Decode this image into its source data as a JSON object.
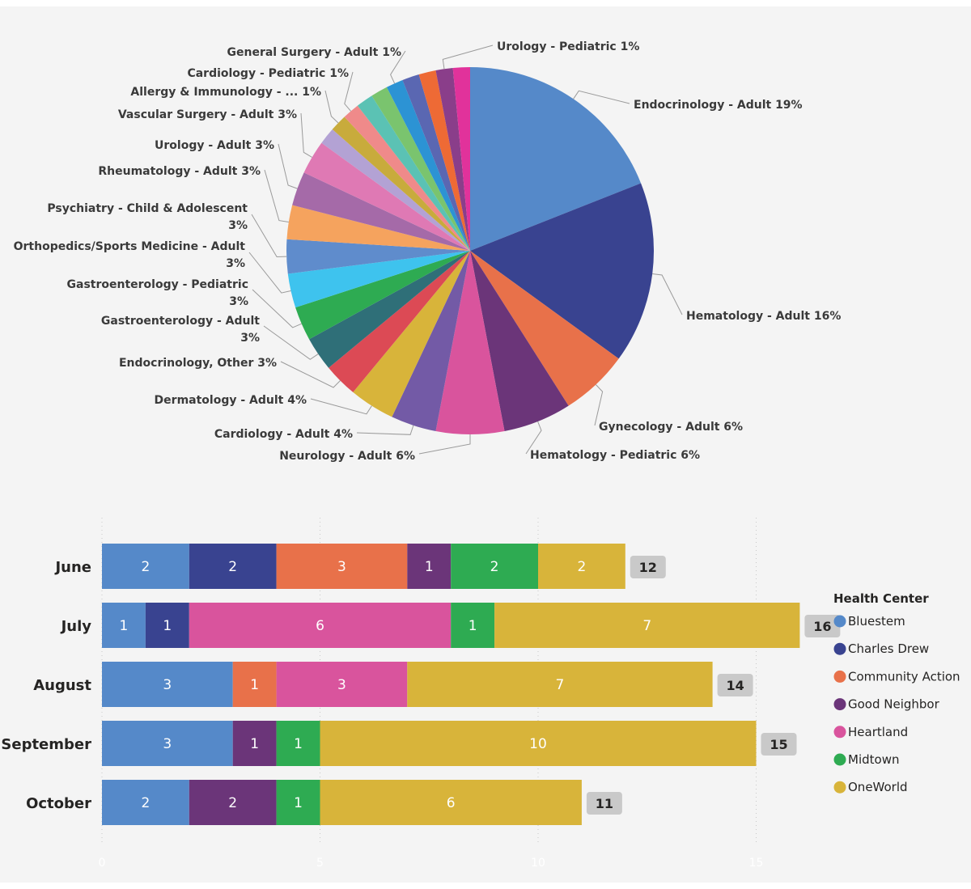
{
  "chart_data": [
    {
      "type": "pie",
      "title": "",
      "slices": [
        {
          "label": "Endocrinology - Adult",
          "pct_label": "19%",
          "value": 19,
          "color": "#5589c9"
        },
        {
          "label": "Hematology - Adult",
          "pct_label": "16%",
          "value": 16,
          "color": "#394390"
        },
        {
          "label": "Gynecology - Adult",
          "pct_label": "6%",
          "value": 6,
          "color": "#e8714a"
        },
        {
          "label": "Hematology - Pediatric",
          "pct_label": "6%",
          "value": 6,
          "color": "#6b3579"
        },
        {
          "label": "Neurology - Adult",
          "pct_label": "6%",
          "value": 6,
          "color": "#d9549d"
        },
        {
          "label": "Cardiology - Adult",
          "pct_label": "4%",
          "value": 4,
          "color": "#735aa6"
        },
        {
          "label": "Dermatology - Adult",
          "pct_label": "4%",
          "value": 4,
          "color": "#d8b43a"
        },
        {
          "label": "Endocrinology, Other",
          "pct_label": "3%",
          "value": 3,
          "color": "#dc4a55"
        },
        {
          "label": "Gastroenterology - Adult",
          "pct_label": "3%",
          "value": 3,
          "color": "#2f6f78"
        },
        {
          "label": "Gastroenterology - Pediatric",
          "pct_label": "3%",
          "value": 3,
          "color": "#2eab52"
        },
        {
          "label": "Orthopedics/Sports Medicine - Adult",
          "pct_label": "3%",
          "value": 3,
          "color": "#3ec3ee"
        },
        {
          "label": "Psychiatry - Child & Adolescent",
          "pct_label": "3%",
          "value": 3,
          "color": "#5f8ccc"
        },
        {
          "label": "Rheumatology - Adult",
          "pct_label": "3%",
          "value": 3,
          "color": "#f5a35e"
        },
        {
          "label": "Urology - Adult",
          "pct_label": "3%",
          "value": 3,
          "color": "#a56aa8"
        },
        {
          "label": "Vascular Surgery - Adult",
          "pct_label": "3%",
          "value": 3,
          "color": "#df79b4"
        },
        {
          "label": "",
          "pct_label": "",
          "value": 1.5,
          "color": "#b3a2d4"
        },
        {
          "label": "Allergy & Immunology - ...",
          "pct_label": "1%",
          "value": 1.5,
          "color": "#c8ab3c"
        },
        {
          "label": "Cardiology - Pediatric",
          "pct_label": "1%",
          "value": 1.5,
          "color": "#ef8a8a"
        },
        {
          "label": "",
          "pct_label": "",
          "value": 1.5,
          "color": "#5bc2b4"
        },
        {
          "label": "",
          "pct_label": "",
          "value": 1.5,
          "color": "#7ac46e"
        },
        {
          "label": "General Surgery - Adult",
          "pct_label": "1%",
          "value": 1.5,
          "color": "#2c93d4"
        },
        {
          "label": "",
          "pct_label": "",
          "value": 1.5,
          "color": "#5a67b2"
        },
        {
          "label": "",
          "pct_label": "",
          "value": 1.5,
          "color": "#ee6a35"
        },
        {
          "label": "Urology - Pediatric",
          "pct_label": "1%",
          "value": 1.5,
          "color": "#8a3e8a"
        },
        {
          "label": "",
          "pct_label": "",
          "value": 1.5,
          "color": "#e1329b"
        }
      ]
    },
    {
      "type": "bar",
      "orientation": "horizontal",
      "stacked": true,
      "categories": [
        "June",
        "July",
        "August",
        "September",
        "October"
      ],
      "series": [
        {
          "name": "Bluestem",
          "color": "#5589c9",
          "values": [
            2,
            1,
            3,
            3,
            2
          ]
        },
        {
          "name": "Charles Drew",
          "color": "#394390",
          "values": [
            2,
            1,
            0,
            0,
            0
          ]
        },
        {
          "name": "Community Action",
          "color": "#e8714a",
          "values": [
            3,
            0,
            1,
            0,
            0
          ]
        },
        {
          "name": "Good Neighbor",
          "color": "#6b3579",
          "values": [
            1,
            0,
            0,
            1,
            2
          ]
        },
        {
          "name": "Heartland",
          "color": "#d9549d",
          "values": [
            0,
            6,
            3,
            0,
            0
          ]
        },
        {
          "name": "Midtown",
          "color": "#2eab52",
          "values": [
            2,
            1,
            0,
            1,
            1
          ]
        },
        {
          "name": "OneWorld",
          "color": "#d8b43a",
          "values": [
            2,
            7,
            7,
            10,
            6
          ]
        }
      ],
      "totals": [
        12,
        16,
        14,
        15,
        11
      ],
      "xlim": [
        0,
        16
      ],
      "xticks": [
        0,
        5,
        10,
        15
      ],
      "legend_title": "Health Center",
      "legend_position": "right"
    }
  ]
}
